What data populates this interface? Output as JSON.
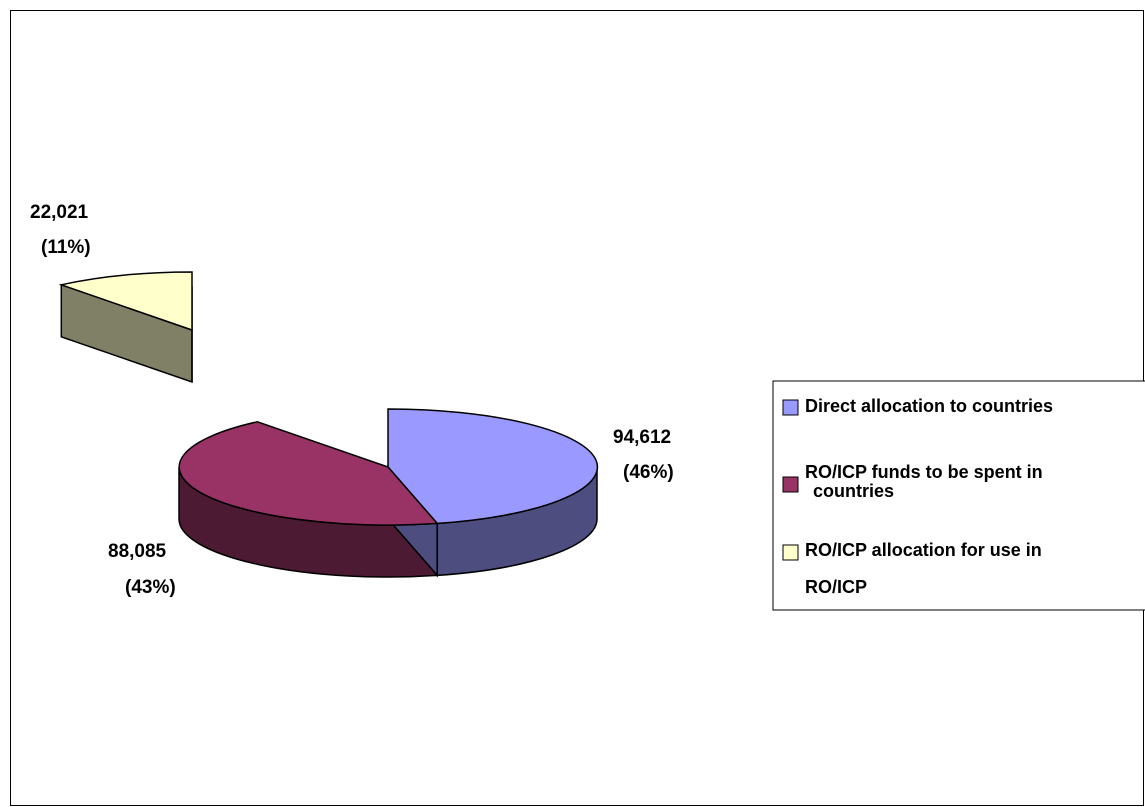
{
  "chart_data": {
    "type": "pie",
    "title": "",
    "legend_position": "right",
    "exploded_slice": 2,
    "slices": [
      {
        "name": "Direct allocation to countries",
        "value": 94612,
        "value_label": "94,612",
        "percent_label": "(46%)",
        "color": "#9999FF",
        "side_color": "#4D4D80"
      },
      {
        "name": "RO/ICP funds to be spent in countries",
        "value": 88085,
        "value_label": "88,085",
        "percent_label": "(43%)",
        "color": "#993366",
        "side_color": "#4D1A33"
      },
      {
        "name": "RO/ICP allocation for use in RO/ICP",
        "value": 22021,
        "value_label": "22,021",
        "percent_label": "(11%)",
        "color": "#FFFFCC",
        "side_color": "#808066"
      }
    ]
  }
}
